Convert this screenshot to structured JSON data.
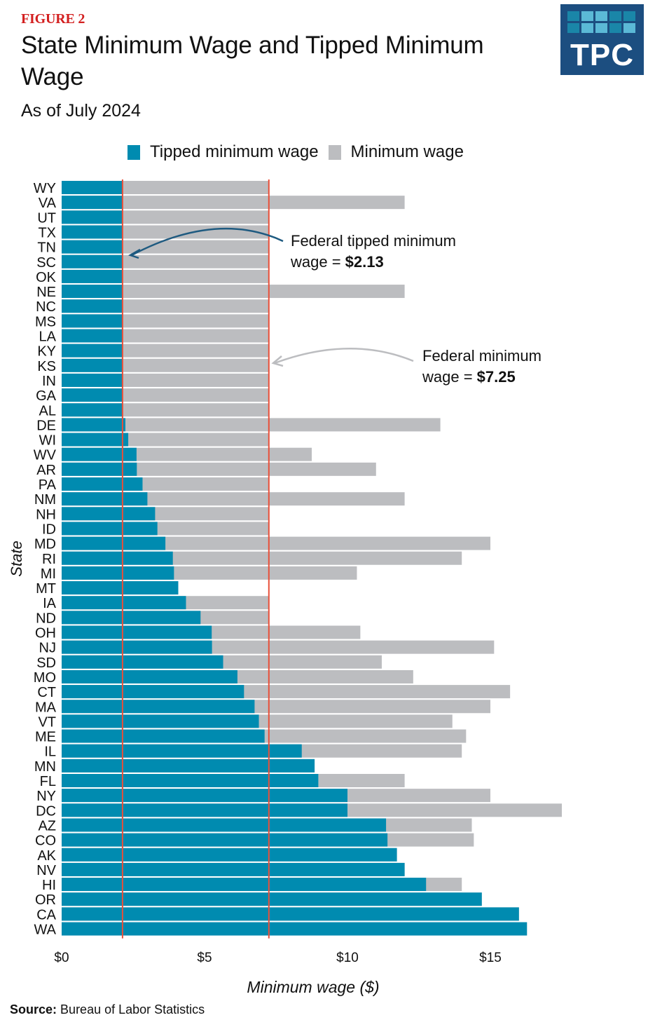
{
  "header": {
    "figure_label": "FIGURE 2",
    "title": "State Minimum Wage and Tipped Minimum Wage",
    "subtitle": "As of July 2024"
  },
  "logo": {
    "text": "TPC",
    "tile_colors": [
      "#1a86a8",
      "#5bb9d6",
      "#5bb9d6",
      "#1a86a8",
      "#1a86a8",
      "#1a86a8",
      "#5bb9d6",
      "#5bb9d6",
      "#1a86a8",
      "#5bb9d6"
    ]
  },
  "colors": {
    "tipped": "#008bb0",
    "minimum": "#bcbdc0",
    "reference_line": "#e8503a",
    "arrow_tipped": "#1e5a80",
    "arrow_min": "#bcbdc0"
  },
  "source": {
    "label": "Source:",
    "text": "Bureau of Labor Statistics"
  },
  "chart_data": {
    "type": "bar",
    "orientation": "horizontal",
    "stacked": "overlay",
    "title": "State Minimum Wage and Tipped Minimum Wage",
    "subtitle": "As of July 2024",
    "xlabel": "Minimum wage ($)",
    "ylabel": "State",
    "xlim": [
      0,
      17.5
    ],
    "x_ticks": [
      0,
      5,
      10,
      15
    ],
    "x_tick_labels": [
      "$0",
      "$5",
      "$10",
      "$15"
    ],
    "grid": false,
    "legend": {
      "placement": "top-center",
      "entries": [
        "Tipped minimum wage",
        "Minimum wage"
      ]
    },
    "categories": [
      "WY",
      "VA",
      "UT",
      "TX",
      "TN",
      "SC",
      "OK",
      "NE",
      "NC",
      "MS",
      "LA",
      "KY",
      "KS",
      "IN",
      "GA",
      "AL",
      "DE",
      "WI",
      "WV",
      "AR",
      "PA",
      "NM",
      "NH",
      "ID",
      "MD",
      "RI",
      "MI",
      "MT",
      "IA",
      "ND",
      "OH",
      "NJ",
      "SD",
      "MO",
      "CT",
      "MA",
      "VT",
      "ME",
      "IL",
      "MN",
      "FL",
      "NY",
      "DC",
      "AZ",
      "CO",
      "AK",
      "NV",
      "HI",
      "OR",
      "CA",
      "WA"
    ],
    "series": [
      {
        "name": "Tipped minimum wage",
        "values": [
          2.13,
          2.13,
          2.13,
          2.13,
          2.13,
          2.13,
          2.13,
          2.13,
          2.13,
          2.13,
          2.13,
          2.13,
          2.13,
          2.13,
          2.13,
          2.13,
          2.23,
          2.33,
          2.62,
          2.63,
          2.83,
          3.0,
          3.27,
          3.35,
          3.63,
          3.89,
          3.93,
          4.08,
          4.35,
          4.86,
          5.25,
          5.26,
          5.65,
          6.15,
          6.38,
          6.75,
          6.9,
          7.1,
          8.4,
          8.85,
          8.98,
          10.0,
          10.0,
          11.35,
          11.4,
          11.73,
          12.0,
          12.75,
          14.7,
          16.0,
          16.28
        ]
      },
      {
        "name": "Minimum wage",
        "values": [
          7.25,
          12.0,
          7.25,
          7.25,
          7.25,
          7.25,
          7.25,
          12.0,
          7.25,
          7.25,
          7.25,
          7.25,
          7.25,
          7.25,
          7.25,
          7.25,
          13.25,
          7.25,
          8.75,
          11.0,
          7.25,
          12.0,
          7.25,
          7.25,
          15.0,
          14.0,
          10.33,
          4.08,
          7.25,
          7.25,
          10.45,
          15.13,
          11.2,
          12.3,
          15.69,
          15.0,
          13.67,
          14.15,
          14.0,
          8.85,
          12.0,
          15.0,
          17.5,
          14.35,
          14.42,
          11.73,
          12.0,
          14.0,
          14.7,
          16.0,
          16.28
        ]
      }
    ],
    "reference_lines": [
      {
        "name": "Federal tipped minimum wage",
        "value": 2.13
      },
      {
        "name": "Federal minimum wage",
        "value": 7.25
      }
    ],
    "annotations": [
      {
        "target": "Federal tipped minimum wage",
        "line1": "Federal tipped minimum",
        "line2_prefix": "wage = ",
        "line2_bold": "$2.13"
      },
      {
        "target": "Federal minimum wage",
        "line1": "Federal minimum",
        "line2_prefix": "wage = ",
        "line2_bold": "$7.25"
      }
    ]
  }
}
